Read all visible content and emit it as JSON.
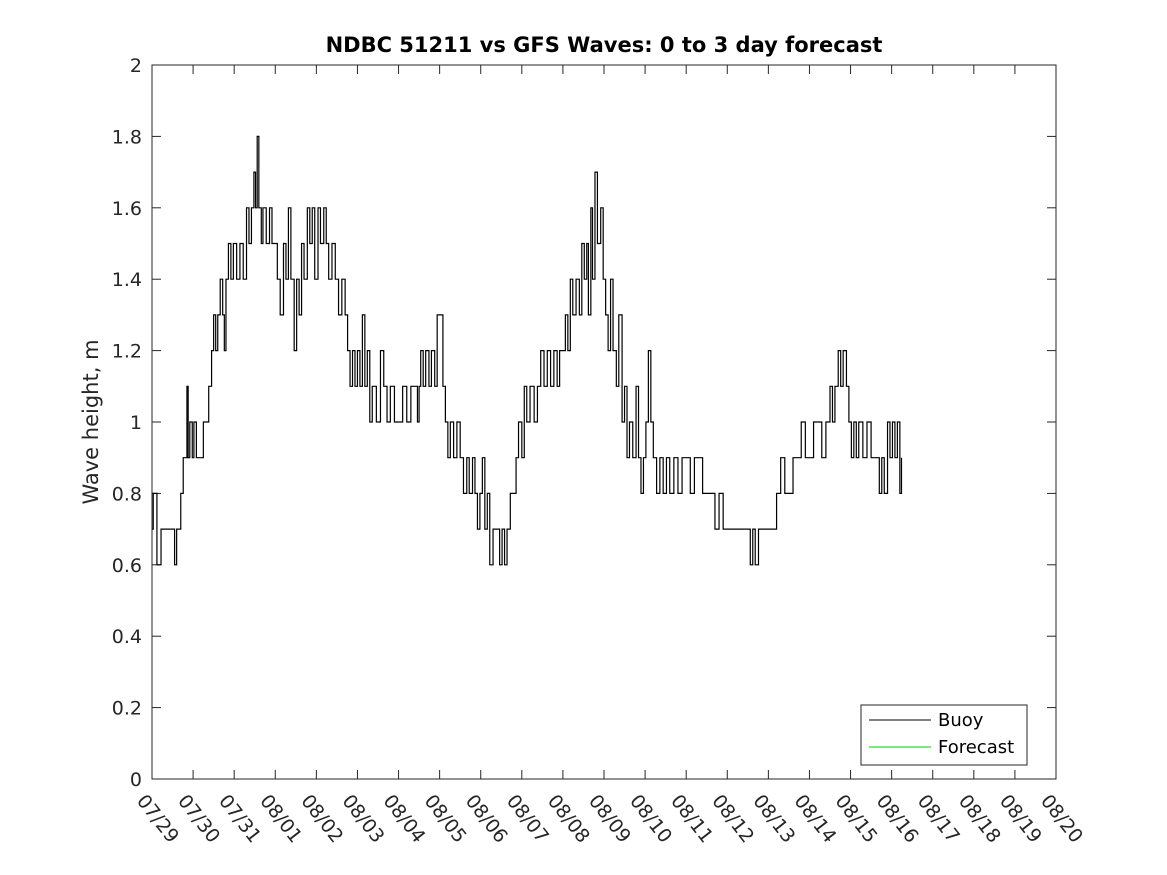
{
  "chart_data": {
    "type": "line",
    "title": "NDBC 51211 vs GFS Waves: 0 to 3 day forecast",
    "xlabel": "",
    "ylabel": "Wave height, m",
    "xlim": [
      "07/29",
      "08/20"
    ],
    "ylim": [
      0,
      2
    ],
    "grid": false,
    "legend_position": "bottom-right",
    "x_ticks": [
      "07/29",
      "07/30",
      "07/31",
      "08/01",
      "08/02",
      "08/03",
      "08/04",
      "08/05",
      "08/06",
      "08/07",
      "08/08",
      "08/09",
      "08/10",
      "08/11",
      "08/12",
      "08/13",
      "08/14",
      "08/15",
      "08/16",
      "08/17",
      "08/18",
      "08/19",
      "08/20"
    ],
    "y_ticks": [
      "0",
      "0.2",
      "0.4",
      "0.6",
      "0.8",
      "1",
      "1.2",
      "1.4",
      "1.6",
      "1.8",
      "2"
    ],
    "series": [
      {
        "name": "Buoy",
        "color": "#000000",
        "x_date_start": "07/29",
        "x_unit": "days",
        "points": [
          [
            0.0,
            0.7
          ],
          [
            0.03,
            0.8
          ],
          [
            0.12,
            0.6
          ],
          [
            0.22,
            0.7
          ],
          [
            0.55,
            0.6
          ],
          [
            0.6,
            0.7
          ],
          [
            0.7,
            0.8
          ],
          [
            0.76,
            0.9
          ],
          [
            0.85,
            1.1
          ],
          [
            0.88,
            0.9
          ],
          [
            0.92,
            1.0
          ],
          [
            0.98,
            0.9
          ],
          [
            1.02,
            1.0
          ],
          [
            1.08,
            0.9
          ],
          [
            1.25,
            1.0
          ],
          [
            1.38,
            1.1
          ],
          [
            1.45,
            1.2
          ],
          [
            1.5,
            1.3
          ],
          [
            1.55,
            1.2
          ],
          [
            1.6,
            1.3
          ],
          [
            1.66,
            1.4
          ],
          [
            1.72,
            1.3
          ],
          [
            1.76,
            1.2
          ],
          [
            1.8,
            1.4
          ],
          [
            1.86,
            1.5
          ],
          [
            1.92,
            1.4
          ],
          [
            1.98,
            1.5
          ],
          [
            2.06,
            1.4
          ],
          [
            2.14,
            1.5
          ],
          [
            2.22,
            1.4
          ],
          [
            2.3,
            1.6
          ],
          [
            2.36,
            1.5
          ],
          [
            2.42,
            1.6
          ],
          [
            2.48,
            1.7
          ],
          [
            2.52,
            1.6
          ],
          [
            2.56,
            1.8
          ],
          [
            2.6,
            1.6
          ],
          [
            2.66,
            1.5
          ],
          [
            2.7,
            1.6
          ],
          [
            2.78,
            1.5
          ],
          [
            2.86,
            1.6
          ],
          [
            2.92,
            1.5
          ],
          [
            3.0,
            1.5
          ],
          [
            3.05,
            1.4
          ],
          [
            3.12,
            1.3
          ],
          [
            3.2,
            1.5
          ],
          [
            3.26,
            1.4
          ],
          [
            3.32,
            1.6
          ],
          [
            3.38,
            1.4
          ],
          [
            3.46,
            1.2
          ],
          [
            3.52,
            1.4
          ],
          [
            3.58,
            1.3
          ],
          [
            3.64,
            1.5
          ],
          [
            3.7,
            1.4
          ],
          [
            3.78,
            1.6
          ],
          [
            3.84,
            1.5
          ],
          [
            3.9,
            1.6
          ],
          [
            3.96,
            1.4
          ],
          [
            4.04,
            1.6
          ],
          [
            4.1,
            1.5
          ],
          [
            4.18,
            1.6
          ],
          [
            4.24,
            1.5
          ],
          [
            4.3,
            1.4
          ],
          [
            4.38,
            1.5
          ],
          [
            4.46,
            1.4
          ],
          [
            4.54,
            1.3
          ],
          [
            4.62,
            1.4
          ],
          [
            4.7,
            1.3
          ],
          [
            4.76,
            1.2
          ],
          [
            4.82,
            1.1
          ],
          [
            4.88,
            1.2
          ],
          [
            4.94,
            1.1
          ],
          [
            5.0,
            1.2
          ],
          [
            5.06,
            1.1
          ],
          [
            5.12,
            1.3
          ],
          [
            5.18,
            1.1
          ],
          [
            5.24,
            1.2
          ],
          [
            5.3,
            1.0
          ],
          [
            5.36,
            1.1
          ],
          [
            5.46,
            1.0
          ],
          [
            5.56,
            1.2
          ],
          [
            5.64,
            1.1
          ],
          [
            5.72,
            1.0
          ],
          [
            5.8,
            1.1
          ],
          [
            5.9,
            1.0
          ],
          [
            6.0,
            1.0
          ],
          [
            6.1,
            1.1
          ],
          [
            6.2,
            1.0
          ],
          [
            6.3,
            1.1
          ],
          [
            6.4,
            1.1
          ],
          [
            6.46,
            1.0
          ],
          [
            6.5,
            1.1
          ],
          [
            6.54,
            1.2
          ],
          [
            6.6,
            1.1
          ],
          [
            6.66,
            1.2
          ],
          [
            6.74,
            1.1
          ],
          [
            6.8,
            1.2
          ],
          [
            6.88,
            1.1
          ],
          [
            6.94,
            1.3
          ],
          [
            7.0,
            1.3
          ],
          [
            7.08,
            1.1
          ],
          [
            7.14,
            1.0
          ],
          [
            7.2,
            0.9
          ],
          [
            7.26,
            1.0
          ],
          [
            7.34,
            0.9
          ],
          [
            7.42,
            1.0
          ],
          [
            7.5,
            0.9
          ],
          [
            7.58,
            0.8
          ],
          [
            7.66,
            0.9
          ],
          [
            7.72,
            0.8
          ],
          [
            7.8,
            0.9
          ],
          [
            7.86,
            0.8
          ],
          [
            7.92,
            0.7
          ],
          [
            7.98,
            0.8
          ],
          [
            8.04,
            0.9
          ],
          [
            8.1,
            0.7
          ],
          [
            8.16,
            0.8
          ],
          [
            8.22,
            0.6
          ],
          [
            8.3,
            0.7
          ],
          [
            8.4,
            0.7
          ],
          [
            8.46,
            0.6
          ],
          [
            8.52,
            0.7
          ],
          [
            8.58,
            0.6
          ],
          [
            8.64,
            0.7
          ],
          [
            8.72,
            0.8
          ],
          [
            8.8,
            0.8
          ],
          [
            8.86,
            0.9
          ],
          [
            8.92,
            1.0
          ],
          [
            9.0,
            0.9
          ],
          [
            9.06,
            1.1
          ],
          [
            9.12,
            1.0
          ],
          [
            9.2,
            1.1
          ],
          [
            9.3,
            1.0
          ],
          [
            9.38,
            1.1
          ],
          [
            9.46,
            1.2
          ],
          [
            9.54,
            1.1
          ],
          [
            9.62,
            1.2
          ],
          [
            9.7,
            1.1
          ],
          [
            9.78,
            1.2
          ],
          [
            9.86,
            1.1
          ],
          [
            9.92,
            1.2
          ],
          [
            10.0,
            1.2
          ],
          [
            10.06,
            1.3
          ],
          [
            10.12,
            1.2
          ],
          [
            10.18,
            1.4
          ],
          [
            10.24,
            1.3
          ],
          [
            10.32,
            1.4
          ],
          [
            10.4,
            1.3
          ],
          [
            10.46,
            1.5
          ],
          [
            10.52,
            1.4
          ],
          [
            10.58,
            1.5
          ],
          [
            10.62,
            1.3
          ],
          [
            10.68,
            1.6
          ],
          [
            10.72,
            1.4
          ],
          [
            10.78,
            1.7
          ],
          [
            10.84,
            1.5
          ],
          [
            10.92,
            1.6
          ],
          [
            10.98,
            1.4
          ],
          [
            11.04,
            1.3
          ],
          [
            11.1,
            1.2
          ],
          [
            11.16,
            1.4
          ],
          [
            11.22,
            1.2
          ],
          [
            11.3,
            1.1
          ],
          [
            11.36,
            1.3
          ],
          [
            11.44,
            1.0
          ],
          [
            11.5,
            1.1
          ],
          [
            11.56,
            0.9
          ],
          [
            11.62,
            1.0
          ],
          [
            11.7,
            0.9
          ],
          [
            11.78,
            1.1
          ],
          [
            11.84,
            0.9
          ],
          [
            11.9,
            0.8
          ],
          [
            11.96,
            0.9
          ],
          [
            12.02,
            1.0
          ],
          [
            12.08,
            1.2
          ],
          [
            12.14,
            1.0
          ],
          [
            12.2,
            0.9
          ],
          [
            12.28,
            0.8
          ],
          [
            12.36,
            0.9
          ],
          [
            12.44,
            0.8
          ],
          [
            12.52,
            0.9
          ],
          [
            12.6,
            0.8
          ],
          [
            12.7,
            0.9
          ],
          [
            12.8,
            0.8
          ],
          [
            12.9,
            0.9
          ],
          [
            13.0,
            0.9
          ],
          [
            13.1,
            0.8
          ],
          [
            13.2,
            0.9
          ],
          [
            13.3,
            0.9
          ],
          [
            13.4,
            0.8
          ],
          [
            13.5,
            0.8
          ],
          [
            13.6,
            0.8
          ],
          [
            13.7,
            0.7
          ],
          [
            13.8,
            0.8
          ],
          [
            13.9,
            0.7
          ],
          [
            14.0,
            0.7
          ],
          [
            14.2,
            0.7
          ],
          [
            14.4,
            0.7
          ],
          [
            14.56,
            0.6
          ],
          [
            14.62,
            0.7
          ],
          [
            14.68,
            0.6
          ],
          [
            14.76,
            0.7
          ],
          [
            14.86,
            0.7
          ],
          [
            15.0,
            0.7
          ],
          [
            15.1,
            0.7
          ],
          [
            15.2,
            0.8
          ],
          [
            15.3,
            0.9
          ],
          [
            15.4,
            0.8
          ],
          [
            15.5,
            0.8
          ],
          [
            15.6,
            0.9
          ],
          [
            15.7,
            0.9
          ],
          [
            15.8,
            1.0
          ],
          [
            15.9,
            0.9
          ],
          [
            16.0,
            0.9
          ],
          [
            16.1,
            1.0
          ],
          [
            16.2,
            1.0
          ],
          [
            16.3,
            0.9
          ],
          [
            16.4,
            1.0
          ],
          [
            16.5,
            1.1
          ],
          [
            16.56,
            1.0
          ],
          [
            16.62,
            1.1
          ],
          [
            16.7,
            1.2
          ],
          [
            16.76,
            1.1
          ],
          [
            16.82,
            1.2
          ],
          [
            16.9,
            1.1
          ],
          [
            16.96,
            1.0
          ],
          [
            17.02,
            0.9
          ],
          [
            17.08,
            1.0
          ],
          [
            17.14,
            0.9
          ],
          [
            17.2,
            1.0
          ],
          [
            17.3,
            0.9
          ],
          [
            17.4,
            1.0
          ],
          [
            17.5,
            0.9
          ],
          [
            17.6,
            0.9
          ],
          [
            17.7,
            0.8
          ],
          [
            17.76,
            0.9
          ],
          [
            17.82,
            0.8
          ],
          [
            17.9,
            1.0
          ],
          [
            17.96,
            0.9
          ],
          [
            18.02,
            1.0
          ],
          [
            18.08,
            0.9
          ],
          [
            18.14,
            1.0
          ],
          [
            18.2,
            0.8
          ],
          [
            18.24,
            0.9
          ]
        ]
      },
      {
        "name": "Forecast",
        "color": "#00cc00",
        "points": []
      }
    ]
  }
}
